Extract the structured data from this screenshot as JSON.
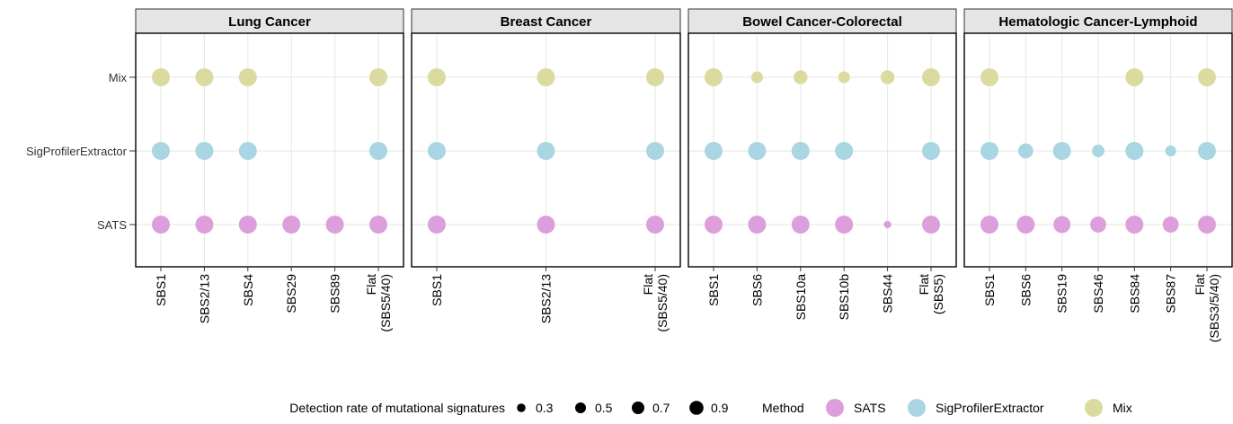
{
  "chart_data": {
    "type": "scatter",
    "rows": [
      "SATS",
      "SigProfilerExtractor",
      "Mix"
    ],
    "grid": true,
    "panels": [
      {
        "title": "Lung Cancer",
        "categories": [
          [
            "SBS1"
          ],
          [
            "SBS2/13"
          ],
          [
            "SBS4"
          ],
          [
            "SBS29"
          ],
          [
            "SBS89"
          ],
          [
            "Flat",
            "(SBS5/40)"
          ]
        ],
        "points": [
          {
            "method": "SATS",
            "x": 0,
            "rate": 0.9
          },
          {
            "method": "SATS",
            "x": 1,
            "rate": 0.9
          },
          {
            "method": "SATS",
            "x": 2,
            "rate": 0.9
          },
          {
            "method": "SATS",
            "x": 3,
            "rate": 0.9
          },
          {
            "method": "SATS",
            "x": 4,
            "rate": 0.9
          },
          {
            "method": "SATS",
            "x": 5,
            "rate": 0.9
          },
          {
            "method": "SigProfilerExtractor",
            "x": 0,
            "rate": 0.9
          },
          {
            "method": "SigProfilerExtractor",
            "x": 1,
            "rate": 0.9
          },
          {
            "method": "SigProfilerExtractor",
            "x": 2,
            "rate": 0.9
          },
          {
            "method": "SigProfilerExtractor",
            "x": 5,
            "rate": 0.9
          },
          {
            "method": "Mix",
            "x": 0,
            "rate": 0.9
          },
          {
            "method": "Mix",
            "x": 1,
            "rate": 0.9
          },
          {
            "method": "Mix",
            "x": 2,
            "rate": 0.9
          },
          {
            "method": "Mix",
            "x": 5,
            "rate": 0.9
          }
        ]
      },
      {
        "title": "Breast Cancer",
        "categories": [
          [
            "SBS1"
          ],
          [
            "SBS2/13"
          ],
          [
            "Flat",
            "(SBS5/40)"
          ]
        ],
        "points": [
          {
            "method": "SATS",
            "x": 0,
            "rate": 0.9
          },
          {
            "method": "SATS",
            "x": 1,
            "rate": 0.9
          },
          {
            "method": "SATS",
            "x": 2,
            "rate": 0.9
          },
          {
            "method": "SigProfilerExtractor",
            "x": 0,
            "rate": 0.9
          },
          {
            "method": "SigProfilerExtractor",
            "x": 1,
            "rate": 0.9
          },
          {
            "method": "SigProfilerExtractor",
            "x": 2,
            "rate": 0.9
          },
          {
            "method": "Mix",
            "x": 0,
            "rate": 0.9
          },
          {
            "method": "Mix",
            "x": 1,
            "rate": 0.9
          },
          {
            "method": "Mix",
            "x": 2,
            "rate": 0.9
          }
        ]
      },
      {
        "title": "Bowel Cancer-Colorectal",
        "categories": [
          [
            "SBS1"
          ],
          [
            "SBS6"
          ],
          [
            "SBS10a"
          ],
          [
            "SBS10b"
          ],
          [
            "SBS44"
          ],
          [
            "Flat",
            "(SBS5)"
          ]
        ],
        "points": [
          {
            "method": "SATS",
            "x": 0,
            "rate": 0.9
          },
          {
            "method": "SATS",
            "x": 1,
            "rate": 0.9
          },
          {
            "method": "SATS",
            "x": 2,
            "rate": 0.9
          },
          {
            "method": "SATS",
            "x": 3,
            "rate": 0.9
          },
          {
            "method": "SATS",
            "x": 4,
            "rate": 0.15
          },
          {
            "method": "SATS",
            "x": 5,
            "rate": 0.9
          },
          {
            "method": "SigProfilerExtractor",
            "x": 0,
            "rate": 0.9
          },
          {
            "method": "SigProfilerExtractor",
            "x": 1,
            "rate": 0.9
          },
          {
            "method": "SigProfilerExtractor",
            "x": 2,
            "rate": 0.9
          },
          {
            "method": "SigProfilerExtractor",
            "x": 3,
            "rate": 0.9
          },
          {
            "method": "SigProfilerExtractor",
            "x": 5,
            "rate": 0.9
          },
          {
            "method": "Mix",
            "x": 0,
            "rate": 0.9
          },
          {
            "method": "Mix",
            "x": 1,
            "rate": 0.35
          },
          {
            "method": "Mix",
            "x": 2,
            "rate": 0.5
          },
          {
            "method": "Mix",
            "x": 3,
            "rate": 0.35
          },
          {
            "method": "Mix",
            "x": 4,
            "rate": 0.5
          },
          {
            "method": "Mix",
            "x": 5,
            "rate": 0.9
          }
        ]
      },
      {
        "title": "Hematologic Cancer-Lymphoid",
        "categories": [
          [
            "SBS1"
          ],
          [
            "SBS6"
          ],
          [
            "SBS19"
          ],
          [
            "SBS46"
          ],
          [
            "SBS84"
          ],
          [
            "SBS87"
          ],
          [
            "Flat",
            "(SBS3/5/40)"
          ]
        ],
        "points": [
          {
            "method": "SATS",
            "x": 0,
            "rate": 0.9
          },
          {
            "method": "SATS",
            "x": 1,
            "rate": 0.9
          },
          {
            "method": "SATS",
            "x": 2,
            "rate": 0.8
          },
          {
            "method": "SATS",
            "x": 3,
            "rate": 0.7
          },
          {
            "method": "SATS",
            "x": 4,
            "rate": 0.9
          },
          {
            "method": "SATS",
            "x": 5,
            "rate": 0.7
          },
          {
            "method": "SATS",
            "x": 6,
            "rate": 0.9
          },
          {
            "method": "SigProfilerExtractor",
            "x": 0,
            "rate": 0.9
          },
          {
            "method": "SigProfilerExtractor",
            "x": 1,
            "rate": 0.6
          },
          {
            "method": "SigProfilerExtractor",
            "x": 2,
            "rate": 0.9
          },
          {
            "method": "SigProfilerExtractor",
            "x": 3,
            "rate": 0.4
          },
          {
            "method": "SigProfilerExtractor",
            "x": 4,
            "rate": 0.9
          },
          {
            "method": "SigProfilerExtractor",
            "x": 5,
            "rate": 0.3
          },
          {
            "method": "SigProfilerExtractor",
            "x": 6,
            "rate": 0.9
          },
          {
            "method": "Mix",
            "x": 0,
            "rate": 0.9
          },
          {
            "method": "Mix",
            "x": 4,
            "rate": 0.9
          },
          {
            "method": "Mix",
            "x": 6,
            "rate": 0.9
          }
        ]
      }
    ],
    "legend": {
      "size_title": "Detection rate of mutational signatures",
      "size_values": [
        0.3,
        0.5,
        0.7,
        0.9
      ],
      "size_labels": [
        "0.3",
        "0.5",
        "0.7",
        "0.9"
      ],
      "color_title": "Method",
      "methods": [
        {
          "name": "SATS",
          "color": "#dc9fdc"
        },
        {
          "name": "SigProfilerExtractor",
          "color": "#a9d6e2"
        },
        {
          "name": "Mix",
          "color": "#dbdba0"
        }
      ],
      "placement": "bottom"
    },
    "colors": {
      "strip_fill": "#e5e5e5",
      "grid": "#e6e6e6",
      "panel_border": "#000000"
    }
  }
}
